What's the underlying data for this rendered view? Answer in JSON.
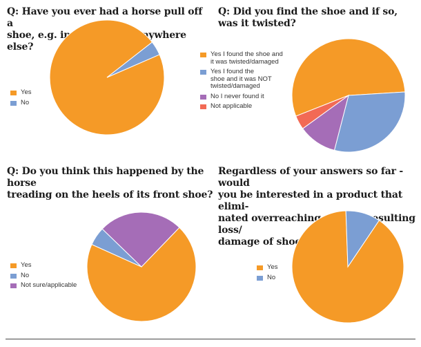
{
  "colors": {
    "orange": "#f59a27",
    "blue": "#7b9ed3",
    "purple": "#a56db7",
    "red": "#f26a55"
  },
  "chart_data": [
    {
      "type": "pie",
      "title": "Q: Have you ever had a horse pull off a shoe, e.g. in the field or anywhere else?",
      "slices": [
        {
          "label": "Yes",
          "value": 96,
          "color": "#f59a27"
        },
        {
          "label": "No",
          "value": 4,
          "color": "#7b9ed3"
        }
      ],
      "start_angle_deg": 66.5,
      "legend_position": "left"
    },
    {
      "type": "pie",
      "title": "Q: Did you find the shoe and if so, was it twisted?",
      "slices": [
        {
          "label": "Yes I found the shoe and it was twisted/damaged",
          "value": 55,
          "color": "#f59a27"
        },
        {
          "label": "Yes I found the shoe and it was NOT twisted/damaged",
          "value": 30,
          "color": "#7b9ed3"
        },
        {
          "label": "No I never found it",
          "value": 11,
          "color": "#a56db7"
        },
        {
          "label": "Not applicable",
          "value": 4,
          "color": "#f26a55"
        }
      ],
      "start_angle_deg": -111.5,
      "legend_position": "left"
    },
    {
      "type": "pie",
      "title": "Q: Do you think this happened by the horse treading on the heels of its front shoe?",
      "slices": [
        {
          "label": "Yes",
          "value": 69.5,
          "color": "#f59a27"
        },
        {
          "label": "No",
          "value": 5.5,
          "color": "#7b9ed3"
        },
        {
          "label": "Not sure/applicable",
          "value": 25,
          "color": "#a56db7"
        }
      ],
      "start_angle_deg": 44,
      "legend_position": "left"
    },
    {
      "type": "pie",
      "title": "Regardless of your answers so far - would you be interested in a product that eliminated overreaching and the resulting loss/damage of shoes?",
      "slices": [
        {
          "label": "Yes",
          "value": 90,
          "color": "#f59a27"
        },
        {
          "label": "No",
          "value": 10,
          "color": "#7b9ed3"
        }
      ],
      "start_angle_deg": 34,
      "legend_position": "left"
    }
  ],
  "titles": [
    [
      "Q: Have you ever had a horse pull off a",
      "shoe, e.g. in the field or anywhere else?"
    ],
    [
      "Q: Did you find the shoe and if so, was it twisted?"
    ],
    [
      "Q: Do you think this happened by the horse",
      "treading on the heels of its front shoe?"
    ],
    [
      "Regardless of your answers so far - would",
      "you be interested in a product that elimi-",
      "nated overreaching and the resulting loss/",
      "damage of shoes?"
    ]
  ],
  "legends": [
    [
      [
        "Yes"
      ],
      [
        "No"
      ]
    ],
    [
      [
        "Yes I found the shoe and",
        "it was twisted/damaged"
      ],
      [
        "Yes I found the",
        "shoe and it was NOT",
        "twisted/damaged"
      ],
      [
        "No I never found it"
      ],
      [
        "Not applicable"
      ]
    ],
    [
      [
        "Yes"
      ],
      [
        "No"
      ],
      [
        "Not sure/applicable"
      ]
    ],
    [
      [
        "Yes"
      ],
      [
        "No"
      ]
    ]
  ]
}
